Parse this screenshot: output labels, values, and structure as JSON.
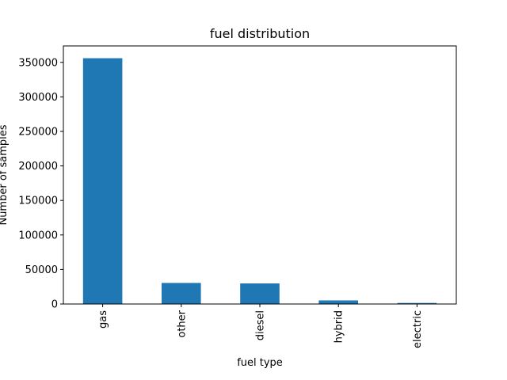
{
  "chart_data": {
    "type": "bar",
    "title": "fuel distribution",
    "xlabel": "fuel type",
    "ylabel": "Number of samples",
    "categories": [
      "gas",
      "other",
      "diesel",
      "hybrid",
      "electric"
    ],
    "values": [
      356000,
      30500,
      29800,
      5200,
      1500
    ],
    "ylim": [
      0,
      373800
    ],
    "yticks": [
      0,
      50000,
      100000,
      150000,
      200000,
      250000,
      300000,
      350000
    ],
    "ytick_labels": [
      "0",
      "50000",
      "100000",
      "150000",
      "200000",
      "250000",
      "300000",
      "350000"
    ],
    "bar_color": "#1f77b4",
    "grid": false,
    "legend": "none"
  }
}
